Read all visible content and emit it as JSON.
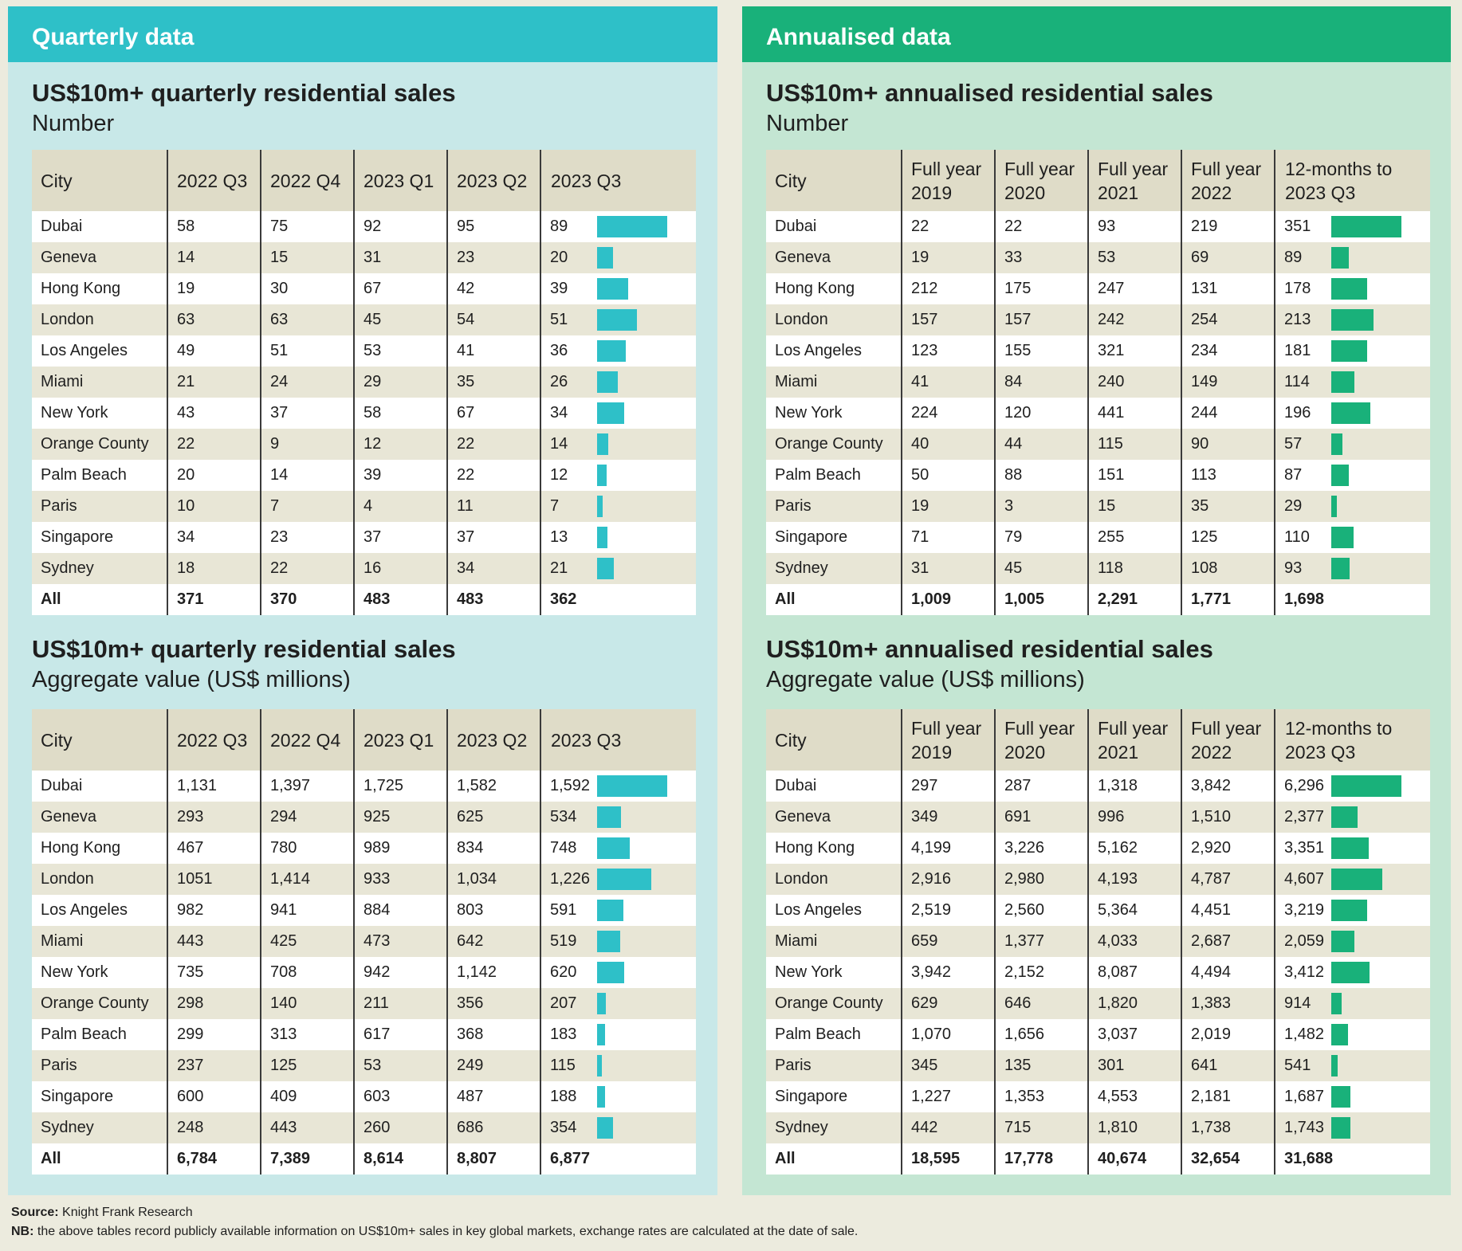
{
  "colors": {
    "quarterly_accent": "#2ec0c8",
    "annual_accent": "#19b17a",
    "quarterly_bg": "#c8e8e8",
    "annual_bg": "#c4e6d3",
    "header_row": "#dfdcc8"
  },
  "quarterly": {
    "header": "Quarterly data",
    "number": {
      "title": "US$10m+ quarterly residential sales",
      "subtitle": "Number",
      "columns": [
        "City",
        "2022 Q3",
        "2022 Q4",
        "2023 Q1",
        "2023 Q2",
        "2023 Q3"
      ],
      "rows": [
        [
          "Dubai",
          "58",
          "75",
          "92",
          "95",
          "89"
        ],
        [
          "Geneva",
          "14",
          "15",
          "31",
          "23",
          "20"
        ],
        [
          "Hong Kong",
          "19",
          "30",
          "67",
          "42",
          "39"
        ],
        [
          "London",
          "63",
          "63",
          "45",
          "54",
          "51"
        ],
        [
          "Los Angeles",
          "49",
          "51",
          "53",
          "41",
          "36"
        ],
        [
          "Miami",
          "21",
          "24",
          "29",
          "35",
          "26"
        ],
        [
          "New York",
          "43",
          "37",
          "58",
          "67",
          "34"
        ],
        [
          "Orange County",
          "22",
          "9",
          "12",
          "22",
          "14"
        ],
        [
          "Palm Beach",
          "20",
          "14",
          "39",
          "22",
          "12"
        ],
        [
          "Paris",
          "10",
          "7",
          "4",
          "11",
          "7"
        ],
        [
          "Singapore",
          "34",
          "23",
          "37",
          "37",
          "13"
        ],
        [
          "Sydney",
          "18",
          "22",
          "16",
          "34",
          "21"
        ]
      ],
      "total": [
        "All",
        "371",
        "370",
        "483",
        "483",
        "362"
      ],
      "bar_values": [
        89,
        20,
        39,
        51,
        36,
        26,
        34,
        14,
        12,
        7,
        13,
        21
      ]
    },
    "value": {
      "title": "US$10m+ quarterly residential sales",
      "subtitle": "Aggregate value (US$ millions)",
      "columns": [
        "City",
        "2022 Q3",
        "2022 Q4",
        "2023 Q1",
        "2023 Q2",
        "2023 Q3"
      ],
      "rows": [
        [
          "Dubai",
          "1,131",
          "1,397",
          "1,725",
          "1,582",
          "1,592"
        ],
        [
          "Geneva",
          "293",
          "294",
          "925",
          "625",
          "534"
        ],
        [
          "Hong Kong",
          "467",
          "780",
          "989",
          "834",
          "748"
        ],
        [
          "London",
          "1051",
          "1,414",
          "933",
          "1,034",
          "1,226"
        ],
        [
          "Los Angeles",
          "982",
          "941",
          "884",
          "803",
          "591"
        ],
        [
          "Miami",
          "443",
          "425",
          "473",
          "642",
          "519"
        ],
        [
          "New York",
          "735",
          "708",
          "942",
          "1,142",
          "620"
        ],
        [
          "Orange County",
          "298",
          "140",
          "211",
          "356",
          "207"
        ],
        [
          "Palm Beach",
          "299",
          "313",
          "617",
          "368",
          "183"
        ],
        [
          "Paris",
          "237",
          "125",
          "53",
          "249",
          "115"
        ],
        [
          "Singapore",
          "600",
          "409",
          "603",
          "487",
          "188"
        ],
        [
          "Sydney",
          "248",
          "443",
          "260",
          "686",
          "354"
        ]
      ],
      "total": [
        "All",
        "6,784",
        "7,389",
        "8,614",
        "8,807",
        "6,877"
      ],
      "bar_values": [
        1592,
        534,
        748,
        1226,
        591,
        519,
        620,
        207,
        183,
        115,
        188,
        354
      ]
    }
  },
  "annual": {
    "header": "Annualised data",
    "number": {
      "title": "US$10m+ annualised residential sales",
      "subtitle": "Number",
      "columns": [
        "City",
        "Full year 2019",
        "Full year 2020",
        "Full year 2021",
        "Full year 2022",
        "12-months to 2023 Q3"
      ],
      "rows": [
        [
          "Dubai",
          "22",
          "22",
          "93",
          "219",
          "351"
        ],
        [
          "Geneva",
          "19",
          "33",
          "53",
          "69",
          "89"
        ],
        [
          "Hong Kong",
          "212",
          "175",
          "247",
          "131",
          "178"
        ],
        [
          "London",
          "157",
          "157",
          "242",
          "254",
          "213"
        ],
        [
          "Los Angeles",
          "123",
          "155",
          "321",
          "234",
          "181"
        ],
        [
          "Miami",
          "41",
          "84",
          "240",
          "149",
          "114"
        ],
        [
          "New York",
          "224",
          "120",
          "441",
          "244",
          "196"
        ],
        [
          "Orange County",
          "40",
          "44",
          "115",
          "90",
          "57"
        ],
        [
          "Palm Beach",
          "50",
          "88",
          "151",
          "113",
          "87"
        ],
        [
          "Paris",
          "19",
          "3",
          "15",
          "35",
          "29"
        ],
        [
          "Singapore",
          "71",
          "79",
          "255",
          "125",
          "110"
        ],
        [
          "Sydney",
          "31",
          "45",
          "118",
          "108",
          "93"
        ]
      ],
      "total": [
        "All",
        "1,009",
        "1,005",
        "2,291",
        "1,771",
        "1,698"
      ],
      "bar_values": [
        351,
        89,
        178,
        213,
        181,
        114,
        196,
        57,
        87,
        29,
        110,
        93
      ]
    },
    "value": {
      "title": "US$10m+ annualised residential sales",
      "subtitle": "Aggregate value (US$ millions)",
      "columns": [
        "City",
        "Full year 2019",
        "Full year 2020",
        "Full year 2021",
        "Full year 2022",
        "12-months to 2023 Q3"
      ],
      "rows": [
        [
          "Dubai",
          "297",
          "287",
          "1,318",
          "3,842",
          "6,296"
        ],
        [
          "Geneva",
          "349",
          "691",
          "996",
          "1,510",
          "2,377"
        ],
        [
          "Hong Kong",
          "4,199",
          "3,226",
          "5,162",
          "2,920",
          "3,351"
        ],
        [
          "London",
          "2,916",
          "2,980",
          "4,193",
          "4,787",
          "4,607"
        ],
        [
          "Los Angeles",
          "2,519",
          "2,560",
          "5,364",
          "4,451",
          "3,219"
        ],
        [
          "Miami",
          "659",
          "1,377",
          "4,033",
          "2,687",
          "2,059"
        ],
        [
          "New York",
          "3,942",
          "2,152",
          "8,087",
          "4,494",
          "3,412"
        ],
        [
          "Orange County",
          "629",
          "646",
          "1,820",
          "1,383",
          "914"
        ],
        [
          "Palm Beach",
          "1,070",
          "1,656",
          "3,037",
          "2,019",
          "1,482"
        ],
        [
          "Paris",
          "345",
          "135",
          "301",
          "641",
          "541"
        ],
        [
          "Singapore",
          "1,227",
          "1,353",
          "4,553",
          "2,181",
          "1,687"
        ],
        [
          "Sydney",
          "442",
          "715",
          "1,810",
          "1,738",
          "1,743"
        ]
      ],
      "total": [
        "All",
        "18,595",
        "17,778",
        "40,674",
        "32,654",
        "31,688"
      ],
      "bar_values": [
        6296,
        2377,
        3351,
        4607,
        3219,
        2059,
        3412,
        914,
        1482,
        541,
        1687,
        1743
      ]
    }
  },
  "footer": {
    "source_label": "Source:",
    "source_text": "Knight Frank Research",
    "nb_label": "NB:",
    "nb_text": "the above tables record publicly available information on US$10m+ sales in key global markets, exchange rates are calculated at the date of sale."
  }
}
